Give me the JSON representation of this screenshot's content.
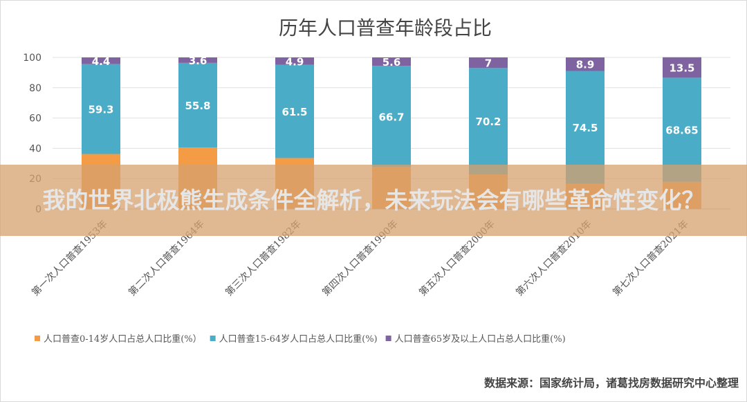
{
  "chart_data": {
    "type": "bar",
    "stacked": true,
    "title": "历年人口普查年龄段占比",
    "categories": [
      "第一次人口普查1953年",
      "第二次人口普查1964年",
      "第三次人口普查1982年",
      "第四次人口普查1990年",
      "第五次人口普查2000年",
      "第六次人口普查2010年",
      "第七次人口普查2021年"
    ],
    "series": [
      {
        "name": "人口普查0-14岁人口占总人口比重(%）",
        "color": "#f39c45",
        "values": [
          36.3,
          40.6,
          33.6,
          27.7,
          22.8,
          16.6,
          17.95
        ]
      },
      {
        "name": "人口普查15-64岁人口占总人口比重(%)",
        "color": "#4aacc6",
        "values": [
          59.3,
          55.8,
          61.5,
          66.7,
          70.2,
          74.5,
          68.65
        ],
        "labels": [
          "59.3",
          "55.8",
          "61.5",
          "66.7",
          "70.2",
          "74.5",
          "68.65"
        ]
      },
      {
        "name": "人口普查65岁及以上人口占总人口比重(%)",
        "color": "#7f63a1",
        "values": [
          4.4,
          3.6,
          4.9,
          5.6,
          7,
          8.9,
          13.5
        ],
        "labels": [
          "4.4",
          "3.6",
          "4.9",
          "5.6",
          "7",
          "8.9",
          "13.5"
        ]
      }
    ],
    "yticks": [
      "0",
      "20",
      "40",
      "60",
      "80",
      "100"
    ],
    "ylim": [
      0,
      100
    ],
    "grid": true,
    "legend": "bottom"
  },
  "source": "数据来源：国家统计局，诸葛找房数据研究中心整理",
  "banner": "我的世界北极熊生成条件全解析，未来玩法会有哪些革命性变化？"
}
